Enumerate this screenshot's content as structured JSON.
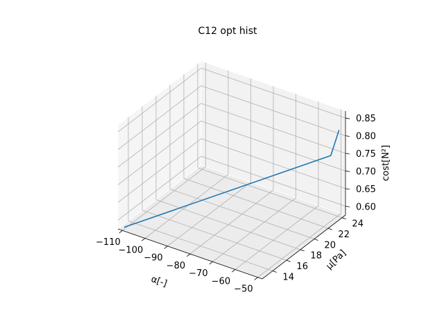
{
  "chart_data": {
    "type": "line3d",
    "title": "C12 opt hist",
    "xlabel": "α[-]",
    "ylabel": "μ[Pa]",
    "zlabel": "cost[N²]",
    "xlim": [
      -112,
      -48
    ],
    "ylim": [
      12.5,
      24.5
    ],
    "zlim": [
      0.575,
      0.87
    ],
    "xticks": [
      -110,
      -100,
      -90,
      -80,
      -70,
      -60,
      -50
    ],
    "yticks": [
      14,
      16,
      18,
      20,
      22,
      24
    ],
    "zticks": [
      0.6,
      0.65,
      0.7,
      0.75,
      0.8,
      0.85
    ],
    "xticklabels": [
      "−110",
      "−100",
      "−90",
      "−80",
      "−70",
      "−60",
      "−50"
    ],
    "yticklabels": [
      "14",
      "16",
      "18",
      "20",
      "22",
      "24"
    ],
    "zticklabels": [
      "0.60",
      "0.65",
      "0.70",
      "0.75",
      "0.80",
      "0.85"
    ],
    "series": [
      {
        "name": "opt hist",
        "color": "#1f77b4",
        "x": [
          -110,
          -53,
          -50
        ],
        "y": [
          12.8,
          24.0,
          24.2
        ],
        "z": [
          0.58,
          0.74,
          0.815
        ]
      }
    ]
  }
}
